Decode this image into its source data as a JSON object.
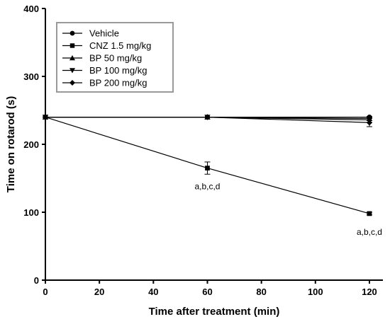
{
  "chart_data": {
    "type": "line",
    "title": "",
    "xlabel": "Time after treatment (min)",
    "ylabel": "Time on rotarod (s)",
    "xlim": [
      0,
      125
    ],
    "ylim": [
      0,
      400
    ],
    "xticks": [
      0,
      20,
      40,
      60,
      80,
      100,
      120
    ],
    "yticks": [
      0,
      100,
      200,
      300,
      400
    ],
    "grid": false,
    "legend_position": "top-left",
    "x": [
      0,
      60,
      120
    ],
    "series": [
      {
        "name": "Vehicle",
        "marker": "circle",
        "color": "#000000",
        "values": [
          240,
          240,
          240
        ],
        "errors": [
          0,
          0,
          0
        ]
      },
      {
        "name": "CNZ 1.5 mg/kg",
        "marker": "square",
        "color": "#000000",
        "values": [
          240,
          165,
          98
        ],
        "errors": [
          0,
          9,
          2
        ]
      },
      {
        "name": "BP 50 mg/kg",
        "marker": "triangle-up",
        "color": "#000000",
        "values": [
          240,
          240,
          238
        ],
        "errors": [
          0,
          0,
          3
        ]
      },
      {
        "name": "BP 100 mg/kg",
        "marker": "triangle-down",
        "color": "#000000",
        "values": [
          240,
          240,
          236
        ],
        "errors": [
          0,
          0,
          4
        ]
      },
      {
        "name": "BP 200 mg/kg",
        "marker": "diamond",
        "color": "#000000",
        "values": [
          240,
          240,
          232
        ],
        "errors": [
          0,
          0,
          6
        ]
      }
    ],
    "annotations": [
      {
        "text": "a,b,c,d",
        "x": 60,
        "y": 165
      },
      {
        "text": "a,b,c,d",
        "x": 120,
        "y": 98
      }
    ]
  }
}
